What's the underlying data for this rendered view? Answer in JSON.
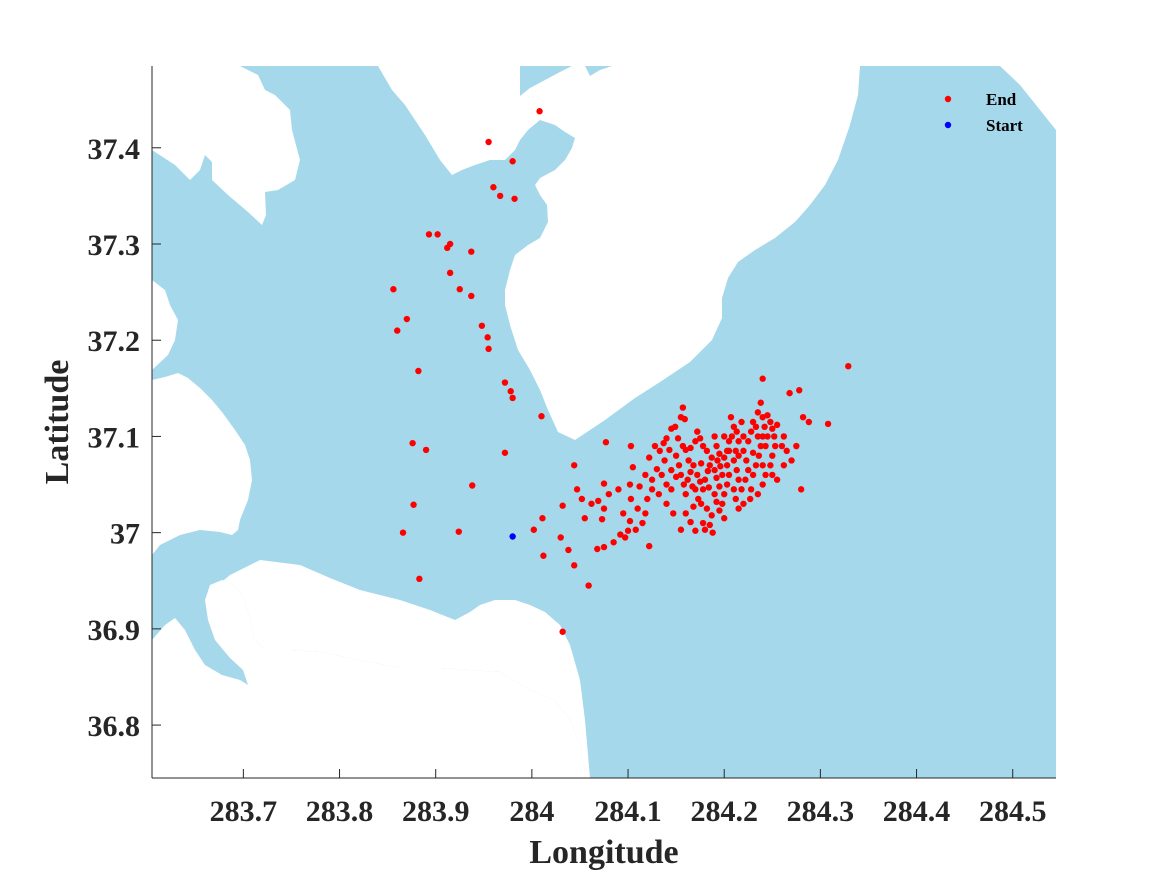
{
  "chart_data": {
    "type": "scatter",
    "xlabel": "Longitude",
    "ylabel": "Latitude",
    "xlim": [
      283.605,
      284.545
    ],
    "ylim": [
      36.745,
      37.485
    ],
    "xticks": [
      283.7,
      283.8,
      283.9,
      284,
      284.1,
      284.2,
      284.3,
      284.4,
      284.5
    ],
    "xtick_labels": [
      "283.7",
      "283.8",
      "283.9",
      "284",
      "284.1",
      "284.2",
      "284.3",
      "284.4",
      "284.5"
    ],
    "yticks": [
      36.8,
      36.9,
      37,
      37.1,
      37.2,
      37.3,
      37.4
    ],
    "ytick_labels": [
      "36.8",
      "36.9",
      "37",
      "37.1",
      "37.2",
      "37.3",
      "37.4"
    ],
    "grid": false,
    "legend_position": "top-right",
    "colors": {
      "water": "#a5d8ea",
      "land": "#ffffff",
      "end": "#ff0000",
      "start": "#0000ff",
      "axis": "#262626"
    },
    "series": [
      {
        "name": "End",
        "color": "#ff0000",
        "points": [
          [
            284.008,
            37.438
          ],
          [
            283.955,
            37.406
          ],
          [
            283.98,
            37.386
          ],
          [
            283.96,
            37.359
          ],
          [
            283.967,
            37.35
          ],
          [
            283.982,
            37.347
          ],
          [
            283.893,
            37.31
          ],
          [
            283.902,
            37.31
          ],
          [
            283.912,
            37.296
          ],
          [
            283.915,
            37.3
          ],
          [
            283.937,
            37.292
          ],
          [
            283.915,
            37.27
          ],
          [
            283.925,
            37.253
          ],
          [
            283.937,
            37.246
          ],
          [
            283.856,
            37.253
          ],
          [
            283.87,
            37.222
          ],
          [
            283.86,
            37.21
          ],
          [
            283.948,
            37.215
          ],
          [
            283.954,
            37.203
          ],
          [
            283.955,
            37.191
          ],
          [
            283.882,
            37.168
          ],
          [
            283.972,
            37.156
          ],
          [
            283.978,
            37.147
          ],
          [
            283.98,
            37.14
          ],
          [
            284.01,
            37.121
          ],
          [
            283.876,
            37.093
          ],
          [
            283.89,
            37.086
          ],
          [
            283.972,
            37.083
          ],
          [
            283.938,
            37.049
          ],
          [
            283.877,
            37.029
          ],
          [
            283.866,
            37.0
          ],
          [
            283.924,
            37.001
          ],
          [
            283.883,
            36.952
          ],
          [
            284.032,
            36.897
          ],
          [
            284.002,
            37.003
          ],
          [
            284.011,
            37.015
          ],
          [
            284.03,
            36.995
          ],
          [
            284.038,
            36.982
          ],
          [
            284.044,
            36.966
          ],
          [
            284.012,
            36.976
          ],
          [
            284.059,
            36.945
          ],
          [
            284.032,
            37.028
          ],
          [
            284.044,
            37.07
          ],
          [
            284.047,
            37.045
          ],
          [
            284.052,
            37.035
          ],
          [
            284.069,
            37.033
          ],
          [
            284.073,
            37.014
          ],
          [
            284.075,
            37.025
          ],
          [
            284.075,
            37.051
          ],
          [
            284.077,
            37.094
          ],
          [
            284.068,
            36.983
          ],
          [
            284.075,
            36.985
          ],
          [
            284.085,
            36.99
          ],
          [
            284.092,
            36.998
          ],
          [
            284.097,
            36.995
          ],
          [
            284.1,
            37.002
          ],
          [
            284.102,
            37.012
          ],
          [
            284.108,
            37.003
          ],
          [
            284.115,
            37.01
          ],
          [
            284.122,
            36.986
          ],
          [
            284.118,
            37.02
          ],
          [
            284.12,
            37.035
          ],
          [
            284.103,
            37.035
          ],
          [
            284.102,
            37.05
          ],
          [
            284.105,
            37.068
          ],
          [
            284.103,
            37.09
          ],
          [
            284.112,
            37.048
          ],
          [
            284.118,
            37.06
          ],
          [
            284.125,
            37.055
          ],
          [
            284.122,
            37.078
          ],
          [
            284.13,
            37.066
          ],
          [
            284.133,
            37.085
          ],
          [
            284.128,
            37.09
          ],
          [
            284.137,
            37.093
          ],
          [
            284.14,
            37.098
          ],
          [
            284.143,
            37.086
          ],
          [
            284.135,
            37.06
          ],
          [
            284.14,
            37.05
          ],
          [
            284.145,
            37.045
          ],
          [
            284.132,
            37.04
          ],
          [
            284.14,
            37.03
          ],
          [
            284.147,
            37.02
          ],
          [
            284.149,
            37.11
          ],
          [
            284.152,
            37.098
          ],
          [
            284.155,
            37.12
          ],
          [
            284.159,
            37.118
          ],
          [
            284.157,
            37.13
          ],
          [
            284.16,
            37.086
          ],
          [
            284.153,
            37.07
          ],
          [
            284.155,
            37.06
          ],
          [
            284.158,
            37.05
          ],
          [
            284.16,
            37.04
          ],
          [
            284.162,
            37.055
          ],
          [
            284.165,
            37.063
          ],
          [
            284.168,
            37.07
          ],
          [
            284.17,
            37.045
          ],
          [
            284.172,
            37.06
          ],
          [
            284.175,
            37.053
          ],
          [
            284.173,
            37.035
          ],
          [
            284.168,
            37.027
          ],
          [
            284.16,
            37.02
          ],
          [
            284.155,
            37.003
          ],
          [
            284.165,
            37.011
          ],
          [
            284.17,
            37.002
          ],
          [
            284.178,
            37.01
          ],
          [
            284.18,
            37.003
          ],
          [
            284.185,
            37.008
          ],
          [
            284.188,
            37.0
          ],
          [
            284.182,
            37.025
          ],
          [
            284.176,
            37.03
          ],
          [
            284.178,
            37.045
          ],
          [
            284.18,
            37.055
          ],
          [
            284.183,
            37.064
          ],
          [
            284.185,
            37.07
          ],
          [
            284.187,
            37.078
          ],
          [
            284.182,
            37.085
          ],
          [
            284.178,
            37.09
          ],
          [
            284.175,
            37.098
          ],
          [
            284.172,
            37.105
          ],
          [
            284.17,
            37.095
          ],
          [
            284.165,
            37.088
          ],
          [
            284.19,
            37.1
          ],
          [
            284.192,
            37.09
          ],
          [
            284.195,
            37.082
          ],
          [
            284.193,
            37.075
          ],
          [
            284.19,
            37.065
          ],
          [
            284.192,
            37.057
          ],
          [
            284.195,
            37.048
          ],
          [
            284.19,
            37.04
          ],
          [
            284.192,
            37.032
          ],
          [
            284.195,
            37.023
          ],
          [
            284.2,
            37.015
          ],
          [
            284.198,
            37.03
          ],
          [
            284.2,
            37.04
          ],
          [
            284.203,
            37.05
          ],
          [
            284.205,
            37.06
          ],
          [
            284.203,
            37.07
          ],
          [
            284.2,
            37.078
          ],
          [
            284.203,
            37.085
          ],
          [
            284.205,
            37.095
          ],
          [
            284.208,
            37.1
          ],
          [
            284.21,
            37.11
          ],
          [
            284.213,
            37.105
          ],
          [
            284.215,
            37.095
          ],
          [
            284.212,
            37.085
          ],
          [
            284.21,
            37.075
          ],
          [
            284.213,
            37.065
          ],
          [
            284.215,
            37.055
          ],
          [
            284.21,
            37.045
          ],
          [
            284.212,
            37.035
          ],
          [
            284.215,
            37.025
          ],
          [
            284.22,
            37.03
          ],
          [
            284.218,
            37.045
          ],
          [
            284.222,
            37.055
          ],
          [
            284.225,
            37.065
          ],
          [
            284.223,
            37.075
          ],
          [
            284.22,
            37.085
          ],
          [
            284.225,
            37.095
          ],
          [
            284.228,
            37.105
          ],
          [
            284.23,
            37.115
          ],
          [
            284.233,
            37.11
          ],
          [
            284.235,
            37.1
          ],
          [
            284.238,
            37.09
          ],
          [
            284.236,
            37.08
          ],
          [
            284.233,
            37.07
          ],
          [
            284.23,
            37.06
          ],
          [
            284.228,
            37.045
          ],
          [
            284.235,
            37.04
          ],
          [
            284.24,
            37.05
          ],
          [
            284.243,
            37.06
          ],
          [
            284.24,
            37.07
          ],
          [
            284.243,
            37.09
          ],
          [
            284.245,
            37.1
          ],
          [
            284.242,
            37.11
          ],
          [
            284.24,
            37.12
          ],
          [
            284.235,
            37.125
          ],
          [
            284.238,
            37.135
          ],
          [
            284.24,
            37.16
          ],
          [
            284.245,
            37.122
          ],
          [
            284.248,
            37.115
          ],
          [
            284.25,
            37.108
          ],
          [
            284.252,
            37.1
          ],
          [
            284.255,
            37.112
          ],
          [
            284.253,
            37.09
          ],
          [
            284.25,
            37.08
          ],
          [
            284.248,
            37.07
          ],
          [
            284.255,
            37.055
          ],
          [
            284.26,
            37.09
          ],
          [
            284.262,
            37.1
          ],
          [
            284.265,
            37.085
          ],
          [
            284.262,
            37.07
          ],
          [
            284.268,
            37.145
          ],
          [
            284.27,
            37.075
          ],
          [
            284.275,
            37.09
          ],
          [
            284.278,
            37.148
          ],
          [
            284.282,
            37.12
          ],
          [
            284.288,
            37.115
          ],
          [
            284.28,
            37.045
          ],
          [
            284.308,
            37.113
          ],
          [
            284.329,
            37.173
          ],
          [
            284.055,
            37.015
          ],
          [
            284.062,
            37.03
          ],
          [
            284.08,
            37.04
          ],
          [
            284.09,
            37.045
          ],
          [
            284.095,
            37.02
          ],
          [
            284.11,
            37.025
          ],
          [
            284.125,
            37.045
          ],
          [
            284.138,
            37.075
          ],
          [
            284.145,
            37.065
          ],
          [
            284.15,
            37.08
          ],
          [
            284.163,
            37.075
          ],
          [
            284.187,
            37.018
          ],
          [
            284.198,
            37.06
          ],
          [
            284.2,
            37.1
          ],
          [
            284.207,
            37.12
          ],
          [
            284.218,
            37.115
          ],
          [
            284.227,
            37.035
          ],
          [
            284.23,
            37.083
          ],
          [
            284.215,
            37.08
          ],
          [
            284.196,
            37.069
          ],
          [
            284.184,
            37.047
          ],
          [
            284.176,
            37.072
          ],
          [
            284.167,
            37.048
          ],
          [
            284.157,
            37.09
          ],
          [
            284.15,
            37.058
          ],
          [
            284.145,
            37.108
          ],
          [
            284.205,
            37.085
          ],
          [
            284.22,
            37.1
          ],
          [
            284.24,
            37.1
          ],
          [
            284.25,
            37.06
          ]
        ]
      },
      {
        "name": "Start",
        "color": "#0000ff",
        "points": [
          [
            283.98,
            36.996
          ]
        ]
      }
    ]
  }
}
